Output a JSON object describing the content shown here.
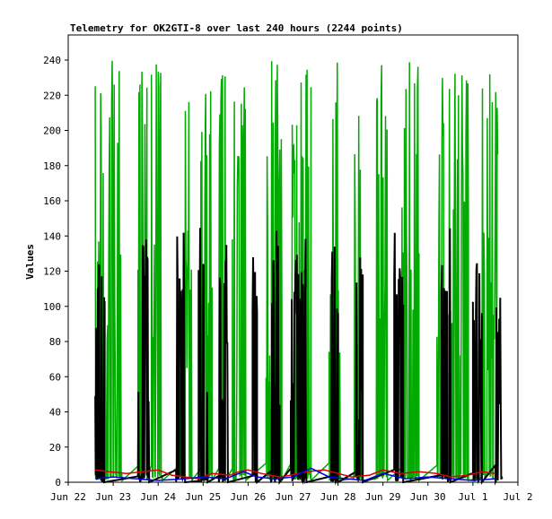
{
  "chart_data": {
    "type": "line",
    "title": "Telemetry for OK2GTI-8 over last 240 hours (2244 points)",
    "xlabel": "",
    "ylabel": "Values",
    "x_ticks": [
      "Jun 22",
      "Jun 23",
      "Jun 24",
      "Jun 25",
      "Jun 26",
      "Jun 27",
      "Jun 28",
      "Jun 29",
      "Jun 30",
      "Jul 1",
      "Jul 2"
    ],
    "x_range": [
      0,
      10
    ],
    "y_ticks": [
      0,
      20,
      40,
      60,
      80,
      100,
      120,
      140,
      160,
      180,
      200,
      220,
      240
    ],
    "ylim": [
      0,
      255
    ],
    "grid": false,
    "legend": "none",
    "series": [
      {
        "color": "#00aa00",
        "shape": "spikes",
        "active": [
          [
            0.6,
            1.2
          ],
          [
            1.55,
            1.75
          ],
          [
            1.85,
            2.1
          ],
          [
            2.45,
            2.75
          ],
          [
            2.95,
            3.2
          ],
          [
            3.35,
            3.5
          ],
          [
            3.65,
            3.95
          ],
          [
            4.4,
            4.75
          ],
          [
            4.95,
            5.4
          ],
          [
            5.8,
            6.05
          ],
          [
            6.35,
            6.55
          ],
          [
            6.85,
            7.1
          ],
          [
            7.4,
            7.8
          ],
          [
            8.2,
            8.9
          ],
          [
            9.2,
            9.55
          ]
        ],
        "baseline": 1,
        "peaks": [
          240,
          225,
          192,
          145,
          128,
          208,
          240,
          160,
          112,
          80,
          97
        ]
      },
      {
        "color": "#000000",
        "shape": "spikes",
        "active": [
          [
            0.6,
            0.8
          ],
          [
            1.55,
            1.8
          ],
          [
            2.4,
            2.6
          ],
          [
            2.9,
            3.1
          ],
          [
            3.35,
            3.55
          ],
          [
            4.1,
            4.2
          ],
          [
            4.5,
            4.7
          ],
          [
            4.95,
            5.3
          ],
          [
            5.85,
            6.0
          ],
          [
            6.4,
            6.55
          ],
          [
            7.25,
            7.45
          ],
          [
            8.3,
            8.5
          ],
          [
            9.0,
            9.2
          ],
          [
            9.5,
            9.65
          ]
        ],
        "baseline": 0,
        "peaks": [
          145,
          128,
          120,
          140,
          100,
          60
        ]
      },
      {
        "color": "#dd0000",
        "x": [
          0.6,
          0.9,
          1.3,
          2.0,
          2.3,
          2.6,
          2.9,
          3.2,
          3.6,
          3.8,
          4.0,
          4.3,
          4.7,
          4.95,
          5.3,
          5.7,
          6.0,
          6.3,
          6.7,
          7.0,
          7.4,
          7.8,
          8.2,
          8.5,
          8.9,
          9.2,
          9.5
        ],
        "y": [
          7,
          6,
          5,
          7,
          4,
          3,
          2,
          5,
          4,
          6,
          7,
          5,
          3,
          4,
          6,
          7,
          5,
          3,
          4,
          7,
          5,
          6,
          5,
          3,
          4,
          6,
          5
        ]
      },
      {
        "color": "#0000dd",
        "x": [
          0.6,
          1.0,
          1.5,
          2.0,
          2.6,
          3.0,
          3.5,
          3.9,
          4.2,
          4.6,
          5.0,
          5.4,
          5.8,
          6.2,
          6.6,
          7.0,
          7.5,
          8.0,
          8.5,
          9.0,
          9.5
        ],
        "y": [
          2,
          3,
          2,
          1,
          2,
          3,
          2,
          6,
          3,
          2,
          3,
          8,
          3,
          2,
          1,
          5,
          2,
          3,
          2,
          1,
          2
        ]
      }
    ]
  }
}
